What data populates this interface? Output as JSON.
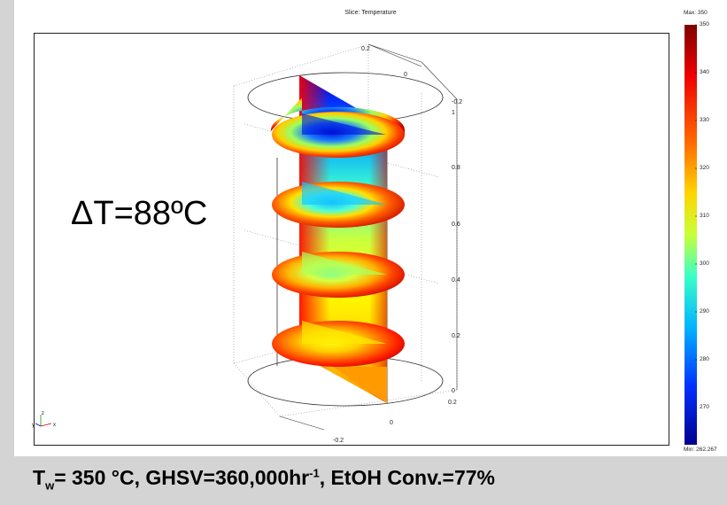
{
  "plot": {
    "title": "Slice: Temperature",
    "annotation": "ΔT=88ºC"
  },
  "colorbar": {
    "max_label": "Max: 350",
    "min_label": "Min: 262.267",
    "ticks": [
      "350",
      "340",
      "330",
      "320",
      "310",
      "300",
      "290",
      "280",
      "270"
    ]
  },
  "axes": {
    "z_ticks": [
      "1",
      "0.8",
      "0.6",
      "0.4",
      "0.2",
      "0"
    ],
    "top_ticks": [
      "0.2",
      "0",
      "-0.2"
    ],
    "bottom_ticks": [
      "0.2",
      "0",
      "-0.2"
    ],
    "triad_labels": [
      "z",
      "x",
      "y"
    ]
  },
  "caption": {
    "tw_main": "T",
    "tw_sub": "w",
    "tw_rest": "= 350 °C,  GHSV=360,000hr",
    "ghsv_sup": "-1",
    "conv": ",  EtOH Conv.=77%"
  }
}
